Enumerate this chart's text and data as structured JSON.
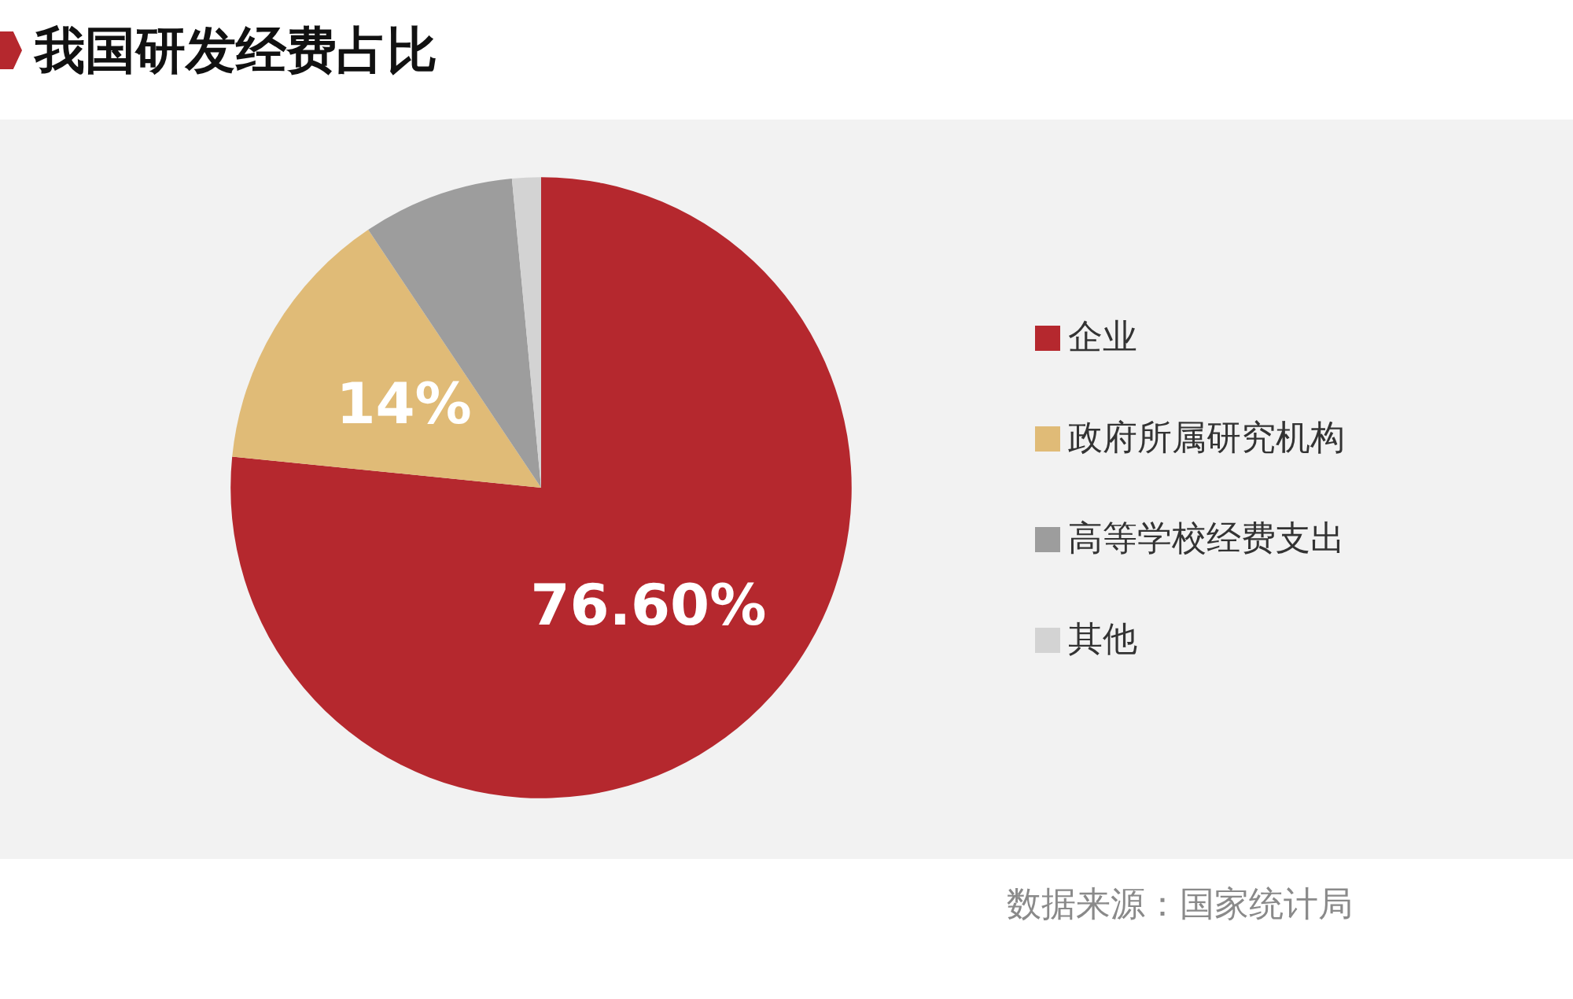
{
  "chart_data": {
    "type": "pie",
    "title": "我国研发经费占比",
    "categories": [
      "企业",
      "政府所属研究机构",
      "高等学校经费支出",
      "其他"
    ],
    "values": [
      76.6,
      14,
      7.9,
      1.5
    ],
    "colors": [
      "#b5282e",
      "#e0bb77",
      "#9d9d9d",
      "#d3d3d3"
    ],
    "value_labels": [
      "76.60%",
      "14%",
      null,
      null
    ],
    "legend": "right",
    "annotations": [
      "数据来源：国家统计局"
    ]
  }
}
